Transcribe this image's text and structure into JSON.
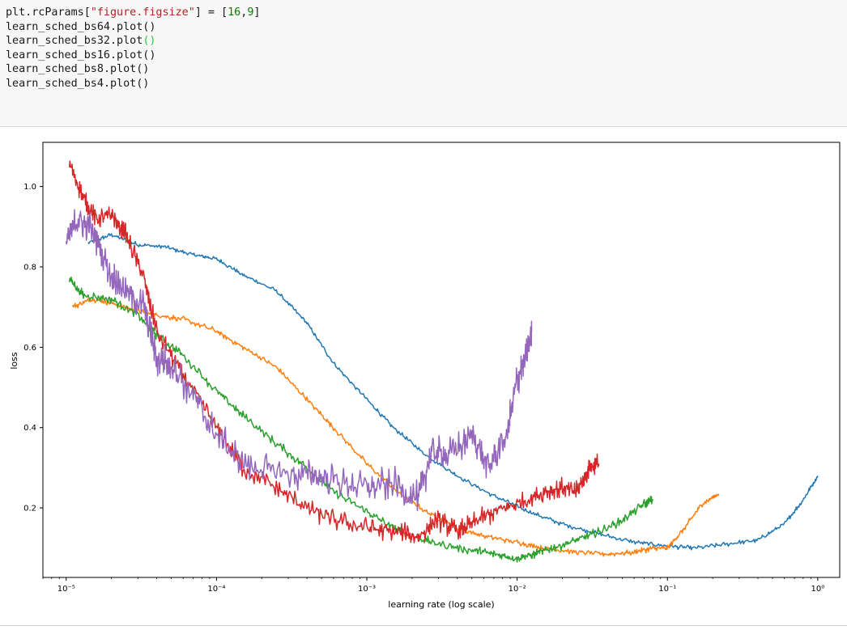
{
  "code": {
    "lines": [
      [
        {
          "t": "plt.rcParams["
        },
        {
          "t": "\"figure.figsize\"",
          "c": "str"
        },
        {
          "t": "] = ["
        },
        {
          "t": "16",
          "c": "num"
        },
        {
          "t": ","
        },
        {
          "t": "9",
          "c": "num"
        },
        {
          "t": "]"
        }
      ],
      [
        {
          "t": "learn_sched_bs64.plot()"
        }
      ],
      [
        {
          "t": "learn_sched_bs32.plot"
        },
        {
          "t": "()",
          "c": "paren-hl"
        }
      ],
      [
        {
          "t": "learn_sched_bs16.plot()"
        }
      ],
      [
        {
          "t": "learn_sched_bs8.plot()"
        }
      ],
      [
        {
          "t": "learn_sched_bs4.plot()"
        }
      ]
    ]
  },
  "chart_data": {
    "type": "line",
    "xlabel": "learning rate (log scale)",
    "ylabel": "loss",
    "xscale": "log",
    "xlim": [
      7e-06,
      1.4
    ],
    "ylim": [
      0.027,
      1.11
    ],
    "grid": false,
    "legend": "none",
    "xticks": [
      {
        "value": 1e-05,
        "label": "10⁻⁵"
      },
      {
        "value": 0.0001,
        "label": "10⁻⁴"
      },
      {
        "value": 0.001,
        "label": "10⁻³"
      },
      {
        "value": 0.01,
        "label": "10⁻²"
      },
      {
        "value": 0.1,
        "label": "10⁻¹"
      },
      {
        "value": 1,
        "label": "10⁰"
      }
    ],
    "yticks": [
      {
        "value": 0.2,
        "label": "0.2"
      },
      {
        "value": 0.4,
        "label": "0.4"
      },
      {
        "value": 0.6,
        "label": "0.6"
      },
      {
        "value": 0.8,
        "label": "0.8"
      },
      {
        "value": 1.0,
        "label": "1.0"
      }
    ],
    "series": [
      {
        "color": "#1f77b4",
        "noise": 0.004,
        "x": [
          1.4e-05,
          2e-05,
          3e-05,
          4.5e-05,
          7e-05,
          0.0001,
          0.00015,
          0.00025,
          0.0004,
          0.0006,
          0.001,
          0.0015,
          0.0025,
          0.004,
          0.007,
          0.012,
          0.02,
          0.035,
          0.06,
          0.1,
          0.15,
          0.25,
          0.4,
          0.6,
          0.8,
          1.0
        ],
        "y": [
          0.86,
          0.88,
          0.855,
          0.85,
          0.83,
          0.82,
          0.78,
          0.74,
          0.66,
          0.56,
          0.47,
          0.4,
          0.33,
          0.28,
          0.23,
          0.19,
          0.16,
          0.135,
          0.115,
          0.105,
          0.1,
          0.11,
          0.12,
          0.16,
          0.22,
          0.28
        ]
      },
      {
        "color": "#ff7f0e",
        "noise": 0.005,
        "x": [
          1.1e-05,
          1.5e-05,
          2e-05,
          3e-05,
          4e-05,
          6e-05,
          0.0001,
          0.00015,
          0.00025,
          0.0004,
          0.0006,
          0.001,
          0.0016,
          0.0025,
          0.004,
          0.006,
          0.01,
          0.015,
          0.025,
          0.04,
          0.06,
          0.08,
          0.1,
          0.13,
          0.17,
          0.22
        ],
        "y": [
          0.7,
          0.72,
          0.71,
          0.69,
          0.68,
          0.67,
          0.64,
          0.6,
          0.55,
          0.47,
          0.4,
          0.31,
          0.24,
          0.19,
          0.15,
          0.13,
          0.115,
          0.1,
          0.09,
          0.085,
          0.09,
          0.1,
          0.1,
          0.15,
          0.21,
          0.235
        ]
      },
      {
        "color": "#2ca02c",
        "noise": 0.008,
        "x": [
          1.05e-05,
          1.3e-05,
          2e-05,
          3e-05,
          4e-05,
          6e-05,
          0.0001,
          0.00015,
          0.00025,
          0.0004,
          0.0006,
          0.001,
          0.0015,
          0.002,
          0.003,
          0.005,
          0.007,
          0.01,
          0.013,
          0.017,
          0.025,
          0.035,
          0.05,
          0.07,
          0.08
        ],
        "y": [
          0.77,
          0.73,
          0.72,
          0.68,
          0.63,
          0.58,
          0.49,
          0.43,
          0.36,
          0.3,
          0.24,
          0.19,
          0.15,
          0.13,
          0.11,
          0.095,
          0.085,
          0.075,
          0.085,
          0.1,
          0.12,
          0.14,
          0.17,
          0.21,
          0.22
        ]
      },
      {
        "color": "#d62728",
        "noise": 0.018,
        "x": [
          1.05e-05,
          1.3e-05,
          1.6e-05,
          2e-05,
          2.5e-05,
          3.3e-05,
          4e-05,
          6e-05,
          0.0001,
          0.00015,
          0.00025,
          0.0004,
          0.0006,
          0.001,
          0.0015,
          0.0022,
          0.003,
          0.004,
          0.005,
          0.007,
          0.01,
          0.015,
          0.02,
          0.025,
          0.03,
          0.035
        ],
        "y": [
          1.06,
          0.97,
          0.92,
          0.93,
          0.88,
          0.77,
          0.64,
          0.53,
          0.4,
          0.3,
          0.25,
          0.2,
          0.17,
          0.15,
          0.14,
          0.13,
          0.17,
          0.14,
          0.16,
          0.19,
          0.21,
          0.24,
          0.25,
          0.24,
          0.3,
          0.31
        ]
      },
      {
        "color": "#9467bd",
        "noise": 0.03,
        "x": [
          1e-05,
          1.2e-05,
          1.5e-05,
          2e-05,
          2.5e-05,
          3.3e-05,
          4e-05,
          5e-05,
          7e-05,
          0.0001,
          0.00015,
          0.00025,
          0.0004,
          0.0006,
          0.001,
          0.0015,
          0.0022,
          0.0027,
          0.0035,
          0.005,
          0.0065,
          0.0085,
          0.01,
          0.0115,
          0.0125
        ],
        "y": [
          0.86,
          0.92,
          0.89,
          0.78,
          0.74,
          0.7,
          0.57,
          0.56,
          0.48,
          0.38,
          0.31,
          0.29,
          0.28,
          0.27,
          0.25,
          0.26,
          0.22,
          0.34,
          0.33,
          0.38,
          0.3,
          0.38,
          0.52,
          0.58,
          0.64
        ]
      }
    ]
  }
}
